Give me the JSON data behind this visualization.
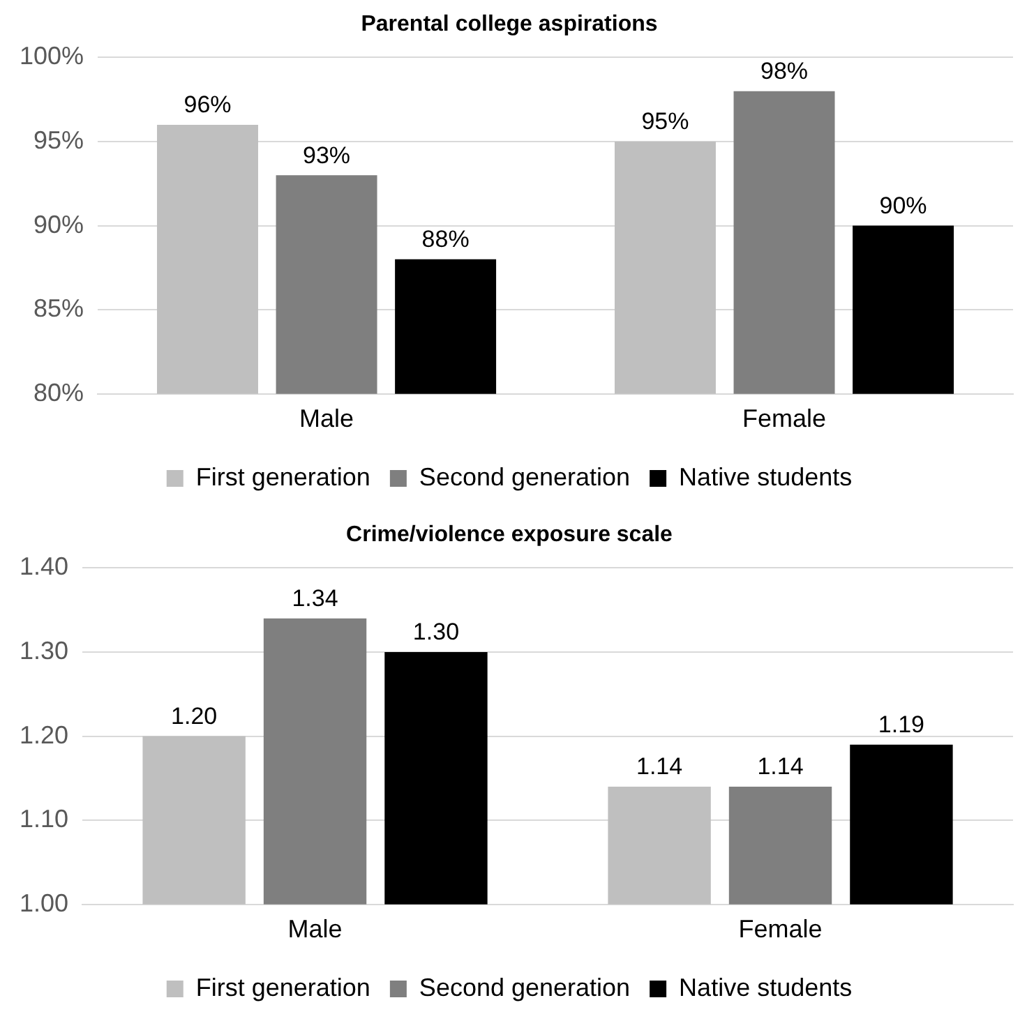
{
  "chart_data": [
    {
      "type": "bar",
      "title": "Parental college aspirations",
      "categories": [
        "Male",
        "Female"
      ],
      "series": [
        {
          "name": "First generation",
          "color": "#bfbfbf",
          "values": [
            96,
            95
          ],
          "value_labels": [
            "96%",
            "95%"
          ]
        },
        {
          "name": "Second generation",
          "color": "#7f7f7f",
          "values": [
            93,
            98
          ],
          "value_labels": [
            "93%",
            "98%"
          ]
        },
        {
          "name": "Native students",
          "color": "#000000",
          "values": [
            88,
            90
          ],
          "value_labels": [
            "88%",
            "90%"
          ]
        }
      ],
      "ylim": [
        80,
        100
      ],
      "yticks": [
        {
          "value": 80,
          "label": "80%"
        },
        {
          "value": 85,
          "label": "85%"
        },
        {
          "value": 90,
          "label": "90%"
        },
        {
          "value": 95,
          "label": "95%"
        },
        {
          "value": 100,
          "label": "100%"
        }
      ],
      "grid": "y",
      "legend": "bottom"
    },
    {
      "type": "bar",
      "title": "Crime/violence exposure scale",
      "categories": [
        "Male",
        "Female"
      ],
      "series": [
        {
          "name": "First generation",
          "color": "#bfbfbf",
          "values": [
            1.2,
            1.14
          ],
          "value_labels": [
            "1.20",
            "1.14"
          ]
        },
        {
          "name": "Second generation",
          "color": "#7f7f7f",
          "values": [
            1.34,
            1.14
          ],
          "value_labels": [
            "1.34",
            "1.14"
          ]
        },
        {
          "name": "Native students",
          "color": "#000000",
          "values": [
            1.3,
            1.19
          ],
          "value_labels": [
            "1.30",
            "1.19"
          ]
        }
      ],
      "ylim": [
        1,
        1.4
      ],
      "yticks": [
        {
          "value": 1,
          "label": "1.00"
        },
        {
          "value": 1.1,
          "label": "1.10"
        },
        {
          "value": 1.2,
          "label": "1.20"
        },
        {
          "value": 1.3,
          "label": "1.30"
        },
        {
          "value": 1.4,
          "label": "1.40"
        }
      ],
      "grid": "y",
      "legend": "bottom"
    }
  ]
}
